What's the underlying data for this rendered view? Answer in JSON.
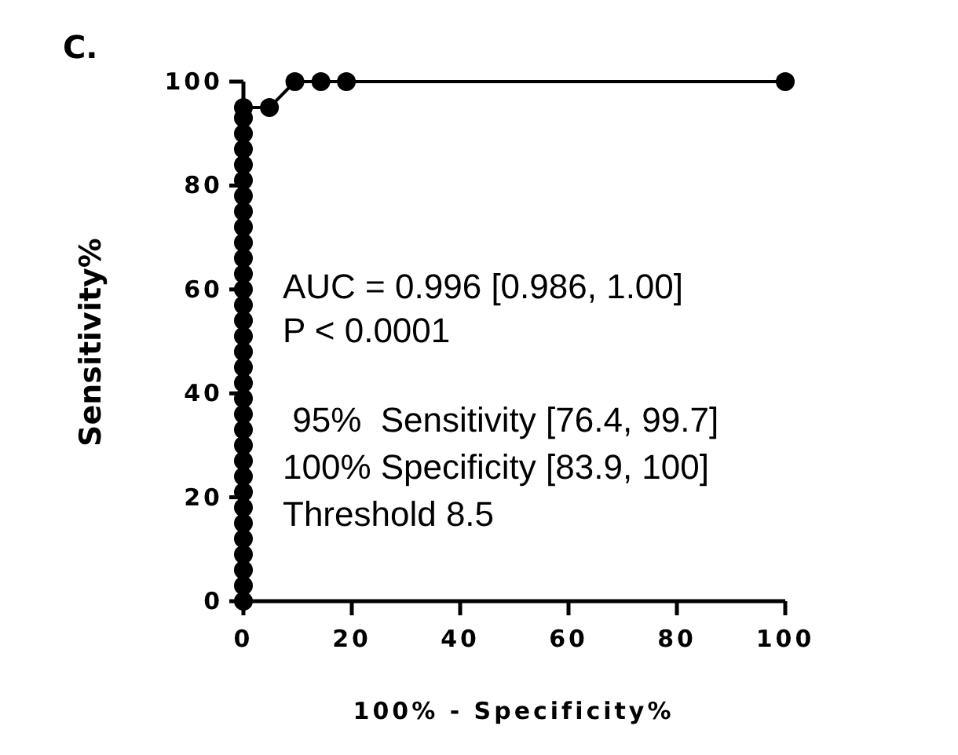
{
  "chart_data": {
    "type": "line",
    "title": "C.",
    "xlabel": "100% - Specificity%",
    "ylabel": "Sensitivity%",
    "x": [
      0,
      0,
      0,
      0,
      0,
      0,
      0,
      0,
      0,
      0,
      0,
      0,
      0,
      0,
      0,
      0,
      0,
      0,
      0,
      0,
      0,
      0,
      0,
      0,
      0,
      0,
      0,
      0,
      0,
      0,
      0,
      0,
      0,
      4.8,
      9.5,
      14.3,
      19,
      100
    ],
    "series": [
      {
        "color": "#000000",
        "values": [
          0,
          3,
          6,
          9,
          12,
          15,
          18,
          21,
          24,
          27,
          30,
          33,
          36,
          39,
          42,
          45,
          48,
          51,
          54,
          57,
          60,
          63,
          66,
          69,
          72,
          75,
          78,
          81,
          84,
          87,
          90,
          93,
          95,
          95,
          100,
          100,
          100,
          100
        ]
      }
    ],
    "xlim": [
      0,
      100
    ],
    "ylim": [
      0,
      100
    ],
    "xticks": [
      0,
      20,
      40,
      60,
      80,
      100
    ],
    "yticks": [
      0,
      20,
      40,
      60,
      80,
      100
    ],
    "marker": "circle",
    "line_style": "solid",
    "grid": false,
    "annotations": [
      "AUC = 0.996 [0.986, 1.00]",
      "P < 0.0001",
      " 95%  Sensitivity [76.4, 99.7]",
      "100% Specificity [83.9, 100]",
      "Threshold 8.5"
    ]
  }
}
